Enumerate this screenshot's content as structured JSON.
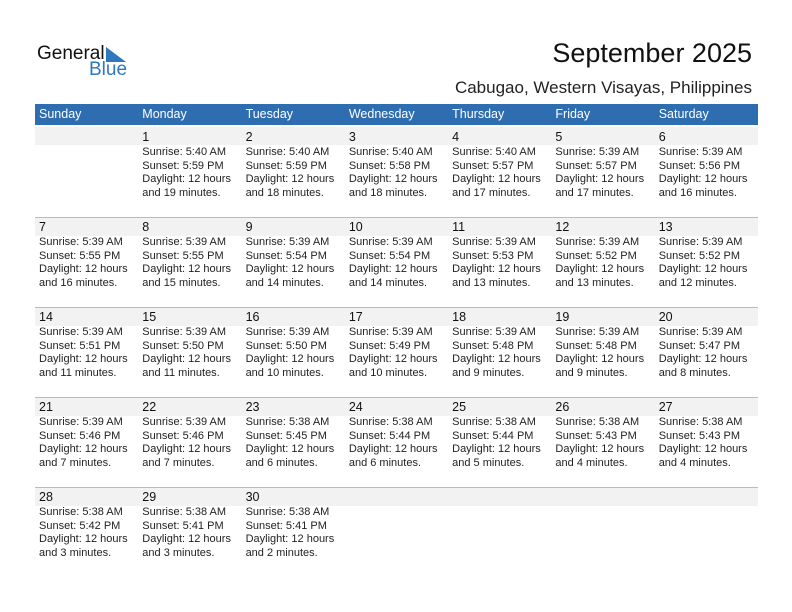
{
  "logo": {
    "text_general": "General",
    "text_blue": "Blue"
  },
  "header": {
    "title": "September 2025",
    "location": "Cabugao, Western Visayas, Philippines"
  },
  "colors": {
    "header_bg": "#2e6eb0",
    "date_band": "#f2f2f2",
    "logo_blue": "#2e78bf"
  },
  "weekdays": [
    "Sunday",
    "Monday",
    "Tuesday",
    "Wednesday",
    "Thursday",
    "Friday",
    "Saturday"
  ],
  "weeks": [
    [
      null,
      {
        "day": "1",
        "sunrise": "Sunrise: 5:40 AM",
        "sunset": "Sunset: 5:59 PM",
        "daylight1": "Daylight: 12 hours",
        "daylight2": "and 19 minutes."
      },
      {
        "day": "2",
        "sunrise": "Sunrise: 5:40 AM",
        "sunset": "Sunset: 5:59 PM",
        "daylight1": "Daylight: 12 hours",
        "daylight2": "and 18 minutes."
      },
      {
        "day": "3",
        "sunrise": "Sunrise: 5:40 AM",
        "sunset": "Sunset: 5:58 PM",
        "daylight1": "Daylight: 12 hours",
        "daylight2": "and 18 minutes."
      },
      {
        "day": "4",
        "sunrise": "Sunrise: 5:40 AM",
        "sunset": "Sunset: 5:57 PM",
        "daylight1": "Daylight: 12 hours",
        "daylight2": "and 17 minutes."
      },
      {
        "day": "5",
        "sunrise": "Sunrise: 5:39 AM",
        "sunset": "Sunset: 5:57 PM",
        "daylight1": "Daylight: 12 hours",
        "daylight2": "and 17 minutes."
      },
      {
        "day": "6",
        "sunrise": "Sunrise: 5:39 AM",
        "sunset": "Sunset: 5:56 PM",
        "daylight1": "Daylight: 12 hours",
        "daylight2": "and 16 minutes."
      }
    ],
    [
      {
        "day": "7",
        "sunrise": "Sunrise: 5:39 AM",
        "sunset": "Sunset: 5:55 PM",
        "daylight1": "Daylight: 12 hours",
        "daylight2": "and 16 minutes."
      },
      {
        "day": "8",
        "sunrise": "Sunrise: 5:39 AM",
        "sunset": "Sunset: 5:55 PM",
        "daylight1": "Daylight: 12 hours",
        "daylight2": "and 15 minutes."
      },
      {
        "day": "9",
        "sunrise": "Sunrise: 5:39 AM",
        "sunset": "Sunset: 5:54 PM",
        "daylight1": "Daylight: 12 hours",
        "daylight2": "and 14 minutes."
      },
      {
        "day": "10",
        "sunrise": "Sunrise: 5:39 AM",
        "sunset": "Sunset: 5:54 PM",
        "daylight1": "Daylight: 12 hours",
        "daylight2": "and 14 minutes."
      },
      {
        "day": "11",
        "sunrise": "Sunrise: 5:39 AM",
        "sunset": "Sunset: 5:53 PM",
        "daylight1": "Daylight: 12 hours",
        "daylight2": "and 13 minutes."
      },
      {
        "day": "12",
        "sunrise": "Sunrise: 5:39 AM",
        "sunset": "Sunset: 5:52 PM",
        "daylight1": "Daylight: 12 hours",
        "daylight2": "and 13 minutes."
      },
      {
        "day": "13",
        "sunrise": "Sunrise: 5:39 AM",
        "sunset": "Sunset: 5:52 PM",
        "daylight1": "Daylight: 12 hours",
        "daylight2": "and 12 minutes."
      }
    ],
    [
      {
        "day": "14",
        "sunrise": "Sunrise: 5:39 AM",
        "sunset": "Sunset: 5:51 PM",
        "daylight1": "Daylight: 12 hours",
        "daylight2": "and 11 minutes."
      },
      {
        "day": "15",
        "sunrise": "Sunrise: 5:39 AM",
        "sunset": "Sunset: 5:50 PM",
        "daylight1": "Daylight: 12 hours",
        "daylight2": "and 11 minutes."
      },
      {
        "day": "16",
        "sunrise": "Sunrise: 5:39 AM",
        "sunset": "Sunset: 5:50 PM",
        "daylight1": "Daylight: 12 hours",
        "daylight2": "and 10 minutes."
      },
      {
        "day": "17",
        "sunrise": "Sunrise: 5:39 AM",
        "sunset": "Sunset: 5:49 PM",
        "daylight1": "Daylight: 12 hours",
        "daylight2": "and 10 minutes."
      },
      {
        "day": "18",
        "sunrise": "Sunrise: 5:39 AM",
        "sunset": "Sunset: 5:48 PM",
        "daylight1": "Daylight: 12 hours",
        "daylight2": "and 9 minutes."
      },
      {
        "day": "19",
        "sunrise": "Sunrise: 5:39 AM",
        "sunset": "Sunset: 5:48 PM",
        "daylight1": "Daylight: 12 hours",
        "daylight2": "and 9 minutes."
      },
      {
        "day": "20",
        "sunrise": "Sunrise: 5:39 AM",
        "sunset": "Sunset: 5:47 PM",
        "daylight1": "Daylight: 12 hours",
        "daylight2": "and 8 minutes."
      }
    ],
    [
      {
        "day": "21",
        "sunrise": "Sunrise: 5:39 AM",
        "sunset": "Sunset: 5:46 PM",
        "daylight1": "Daylight: 12 hours",
        "daylight2": "and 7 minutes."
      },
      {
        "day": "22",
        "sunrise": "Sunrise: 5:39 AM",
        "sunset": "Sunset: 5:46 PM",
        "daylight1": "Daylight: 12 hours",
        "daylight2": "and 7 minutes."
      },
      {
        "day": "23",
        "sunrise": "Sunrise: 5:38 AM",
        "sunset": "Sunset: 5:45 PM",
        "daylight1": "Daylight: 12 hours",
        "daylight2": "and 6 minutes."
      },
      {
        "day": "24",
        "sunrise": "Sunrise: 5:38 AM",
        "sunset": "Sunset: 5:44 PM",
        "daylight1": "Daylight: 12 hours",
        "daylight2": "and 6 minutes."
      },
      {
        "day": "25",
        "sunrise": "Sunrise: 5:38 AM",
        "sunset": "Sunset: 5:44 PM",
        "daylight1": "Daylight: 12 hours",
        "daylight2": "and 5 minutes."
      },
      {
        "day": "26",
        "sunrise": "Sunrise: 5:38 AM",
        "sunset": "Sunset: 5:43 PM",
        "daylight1": "Daylight: 12 hours",
        "daylight2": "and 4 minutes."
      },
      {
        "day": "27",
        "sunrise": "Sunrise: 5:38 AM",
        "sunset": "Sunset: 5:43 PM",
        "daylight1": "Daylight: 12 hours",
        "daylight2": "and 4 minutes."
      }
    ],
    [
      {
        "day": "28",
        "sunrise": "Sunrise: 5:38 AM",
        "sunset": "Sunset: 5:42 PM",
        "daylight1": "Daylight: 12 hours",
        "daylight2": "and 3 minutes."
      },
      {
        "day": "29",
        "sunrise": "Sunrise: 5:38 AM",
        "sunset": "Sunset: 5:41 PM",
        "daylight1": "Daylight: 12 hours",
        "daylight2": "and 3 minutes."
      },
      {
        "day": "30",
        "sunrise": "Sunrise: 5:38 AM",
        "sunset": "Sunset: 5:41 PM",
        "daylight1": "Daylight: 12 hours",
        "daylight2": "and 2 minutes."
      },
      null,
      null,
      null,
      null
    ]
  ]
}
